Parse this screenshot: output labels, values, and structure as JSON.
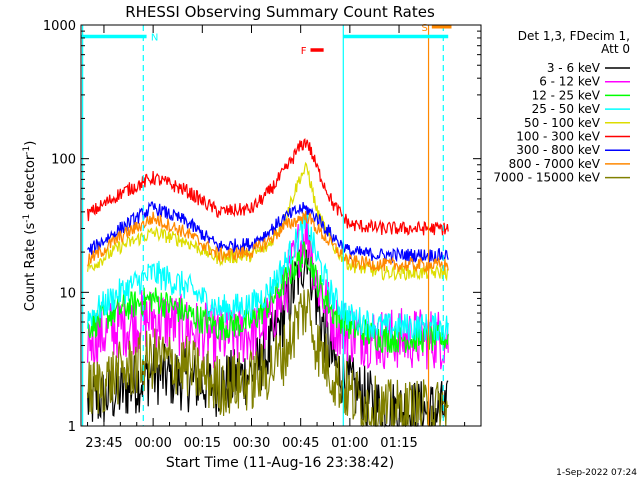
{
  "chart_data": {
    "type": "line",
    "title": "RHESSI Observing Summary Count Rates",
    "xlabel": "Start Time (11-Aug-16 23:38:42)",
    "ylabel_main": "Count Rate (s",
    "ylabel_sup1": "-1",
    "ylabel_mid": " detector",
    "ylabel_sup2": "-1",
    "ylabel_end": ")",
    "y_scale": "log",
    "ylim": [
      1,
      1000
    ],
    "xlim_minutes": [
      -22,
      100
    ],
    "x_ticks": [
      {
        "label": "23:45",
        "minute": -15
      },
      {
        "label": "00:00",
        "minute": 0
      },
      {
        "label": "00:15",
        "minute": 15
      },
      {
        "label": "00:30",
        "minute": 30
      },
      {
        "label": "00:45",
        "minute": 45
      },
      {
        "label": "01:00",
        "minute": 60
      },
      {
        "label": "01:15",
        "minute": 75
      }
    ],
    "y_ticks": [
      {
        "label": "1",
        "value": 1
      },
      {
        "label": "10",
        "value": 10
      },
      {
        "label": "100",
        "value": 100
      },
      {
        "label": "1000",
        "value": 1000
      }
    ],
    "legend_header": [
      "Det 1,3, FDecim 1,",
      "Att 0"
    ],
    "legend_position": "top-right outside plot",
    "series": [
      {
        "name": "3 - 6 keV",
        "color": "#000000",
        "x": [
          -20,
          -10,
          0,
          10,
          20,
          30,
          35,
          40,
          45,
          47,
          50,
          55,
          60,
          70,
          80,
          90
        ],
        "y": [
          1.5,
          1.8,
          2.5,
          2.2,
          2.0,
          2.5,
          3.5,
          7,
          15,
          22,
          8,
          3,
          2,
          1.3,
          1.3,
          1.3
        ]
      },
      {
        "name": "6 - 12 keV",
        "color": "#ff00ff",
        "x": [
          -20,
          -10,
          0,
          10,
          20,
          30,
          35,
          40,
          45,
          47,
          50,
          55,
          60,
          70,
          80,
          90
        ],
        "y": [
          4.5,
          5.5,
          6.5,
          5.5,
          4.5,
          5.0,
          6,
          10,
          24,
          30,
          12,
          6,
          5,
          4.5,
          4.5,
          4.5
        ]
      },
      {
        "name": "12 - 25 keV",
        "color": "#00ff00",
        "x": [
          -20,
          -10,
          0,
          10,
          20,
          30,
          35,
          40,
          45,
          47,
          50,
          55,
          60,
          70,
          80,
          90
        ],
        "y": [
          5.5,
          7.5,
          9,
          7,
          5.5,
          6,
          8,
          12,
          18,
          20,
          12,
          7,
          5.5,
          4.5,
          4.5,
          4.5
        ]
      },
      {
        "name": "25 - 50 keV",
        "color": "#00ffff",
        "x": [
          -20,
          -10,
          0,
          10,
          20,
          30,
          35,
          40,
          45,
          47,
          50,
          55,
          60,
          70,
          80,
          90
        ],
        "y": [
          6.5,
          10,
          14,
          11,
          7.5,
          8,
          10,
          16,
          28,
          33,
          18,
          9,
          6.5,
          5.5,
          5.5,
          5.5
        ]
      },
      {
        "name": "50 - 100 keV",
        "color": "#dddd00",
        "x": [
          -20,
          -10,
          0,
          10,
          20,
          30,
          35,
          40,
          45,
          47,
          50,
          55,
          60,
          70,
          80,
          90
        ],
        "y": [
          15,
          22,
          28,
          24,
          18,
          19,
          22,
          35,
          75,
          85,
          40,
          22,
          16,
          14,
          14,
          14
        ]
      },
      {
        "name": "100 - 300 keV",
        "color": "#ff0000",
        "x": [
          -20,
          -10,
          0,
          10,
          20,
          30,
          35,
          40,
          45,
          47,
          50,
          55,
          60,
          70,
          80,
          90
        ],
        "y": [
          38,
          55,
          72,
          58,
          40,
          42,
          55,
          80,
          125,
          135,
          85,
          45,
          32,
          30,
          30,
          30
        ]
      },
      {
        "name": "300 - 800 keV",
        "color": "#0000ff",
        "x": [
          -20,
          -10,
          0,
          10,
          20,
          30,
          35,
          40,
          45,
          47,
          50,
          55,
          60,
          70,
          80,
          90
        ],
        "y": [
          20,
          30,
          43,
          34,
          22,
          23,
          28,
          36,
          42,
          42,
          36,
          26,
          20,
          19,
          19,
          19
        ]
      },
      {
        "name": "800 - 7000 keV",
        "color": "#ff8800",
        "x": [
          -20,
          -10,
          0,
          10,
          20,
          30,
          35,
          40,
          45,
          47,
          50,
          55,
          60,
          70,
          80,
          90
        ],
        "y": [
          17,
          26,
          36,
          28,
          19,
          20,
          24,
          31,
          36,
          37,
          30,
          22,
          17,
          16,
          16,
          16
        ]
      },
      {
        "name": "7000 - 15000 keV",
        "color": "#808000",
        "x": [
          -20,
          -10,
          0,
          10,
          20,
          30,
          35,
          40,
          45,
          47,
          50,
          55,
          60,
          70,
          80,
          90
        ],
        "y": [
          1.8,
          2.5,
          3.2,
          2.8,
          2.0,
          2.2,
          2.6,
          3.5,
          7,
          8,
          4,
          2.4,
          1.7,
          1.3,
          1.3,
          1.3
        ]
      }
    ],
    "annotations": {
      "bars": [
        {
          "label": "N",
          "color": "#00ffff",
          "x_start": -22,
          "x_end": -2,
          "level": 820
        },
        {
          "label": "F",
          "color": "#ff0000",
          "x_start": 48,
          "x_end": 52,
          "level": 650
        },
        {
          "label": "",
          "color": "#00ffff",
          "x_start": 58,
          "x_end": 90,
          "level": 820
        },
        {
          "label": "S",
          "color": "#ff8800",
          "x_start": 85,
          "x_end": 91,
          "level": 970
        }
      ],
      "vlines": [
        {
          "minute": -21.5,
          "color": "#00ffff",
          "style": "solid"
        },
        {
          "minute": -3,
          "color": "#00ffff",
          "style": "dashed"
        },
        {
          "minute": 58,
          "color": "#00ffff",
          "style": "solid"
        },
        {
          "minute": 84,
          "color": "#ff8800",
          "style": "solid"
        },
        {
          "minute": 88.5,
          "color": "#00ffff",
          "style": "dashed"
        }
      ]
    },
    "footer_timestamp": "1-Sep-2022 07:24"
  }
}
